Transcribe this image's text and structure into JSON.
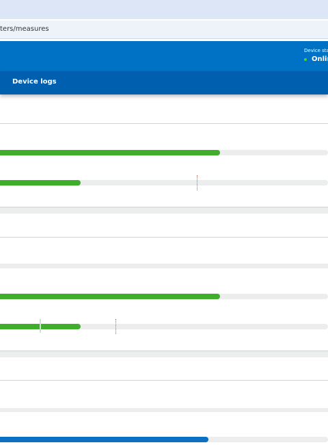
{
  "address_bar": {
    "url": "ters/measures"
  },
  "header": {
    "status_label": "Device statu",
    "status_value": "Onlin"
  },
  "nav": {
    "tab": "Device logs"
  }
}
